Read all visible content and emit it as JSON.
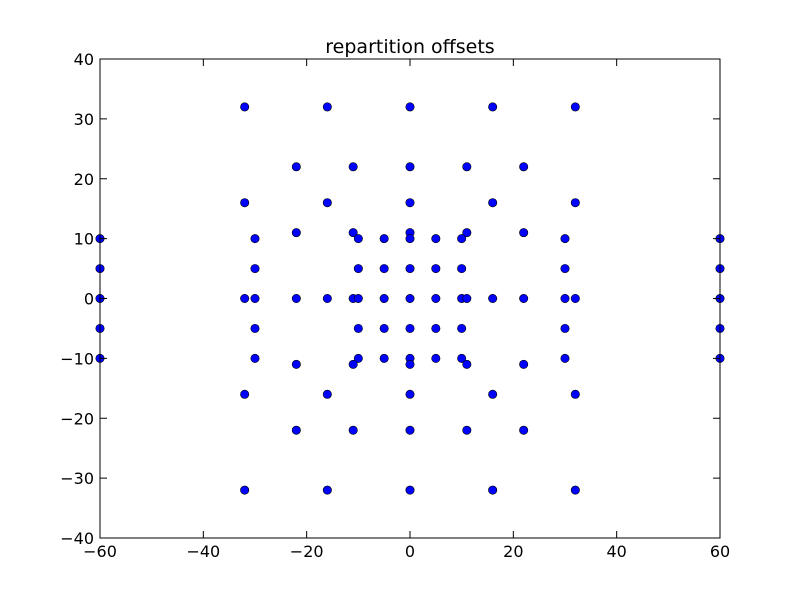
{
  "chart_data": {
    "type": "scatter",
    "title": "repartition offsets",
    "xlabel": "",
    "ylabel": "",
    "xlim": [
      -60,
      60
    ],
    "ylim": [
      -40,
      40
    ],
    "xticks": [
      -60,
      -40,
      -20,
      0,
      20,
      40,
      60
    ],
    "yticks": [
      -40,
      -30,
      -20,
      -10,
      0,
      10,
      20,
      30,
      40
    ],
    "xtick_labels": [
      "−60",
      "−40",
      "−20",
      "0",
      "20",
      "40",
      "60"
    ],
    "ytick_labels": [
      "−40",
      "−30",
      "−20",
      "−10",
      "0",
      "10",
      "20",
      "30",
      "40"
    ],
    "grid": false,
    "marker_color": "#0000ff",
    "points": [
      [
        -32,
        32
      ],
      [
        -16,
        32
      ],
      [
        0,
        32
      ],
      [
        16,
        32
      ],
      [
        32,
        32
      ],
      [
        -22,
        22
      ],
      [
        -11,
        22
      ],
      [
        0,
        22
      ],
      [
        11,
        22
      ],
      [
        22,
        22
      ],
      [
        -32,
        16
      ],
      [
        -16,
        16
      ],
      [
        0,
        16
      ],
      [
        16,
        16
      ],
      [
        32,
        16
      ],
      [
        -22,
        11
      ],
      [
        -11,
        11
      ],
      [
        0,
        11
      ],
      [
        11,
        11
      ],
      [
        22,
        11
      ],
      [
        -60,
        10
      ],
      [
        -30,
        10
      ],
      [
        -10,
        10
      ],
      [
        -5,
        10
      ],
      [
        0,
        10
      ],
      [
        5,
        10
      ],
      [
        10,
        10
      ],
      [
        30,
        10
      ],
      [
        60,
        10
      ],
      [
        -60,
        5
      ],
      [
        -30,
        5
      ],
      [
        -10,
        5
      ],
      [
        -5,
        5
      ],
      [
        0,
        5
      ],
      [
        5,
        5
      ],
      [
        10,
        5
      ],
      [
        30,
        5
      ],
      [
        60,
        5
      ],
      [
        -60,
        0
      ],
      [
        -32,
        0
      ],
      [
        -30,
        0
      ],
      [
        -22,
        0
      ],
      [
        -16,
        0
      ],
      [
        -11,
        0
      ],
      [
        -10,
        0
      ],
      [
        -5,
        0
      ],
      [
        0,
        0
      ],
      [
        5,
        0
      ],
      [
        10,
        0
      ],
      [
        11,
        0
      ],
      [
        16,
        0
      ],
      [
        22,
        0
      ],
      [
        30,
        0
      ],
      [
        32,
        0
      ],
      [
        60,
        0
      ],
      [
        -60,
        -5
      ],
      [
        -30,
        -5
      ],
      [
        -10,
        -5
      ],
      [
        -5,
        -5
      ],
      [
        0,
        -5
      ],
      [
        5,
        -5
      ],
      [
        10,
        -5
      ],
      [
        30,
        -5
      ],
      [
        60,
        -5
      ],
      [
        -60,
        -10
      ],
      [
        -30,
        -10
      ],
      [
        -10,
        -10
      ],
      [
        -5,
        -10
      ],
      [
        0,
        -10
      ],
      [
        5,
        -10
      ],
      [
        10,
        -10
      ],
      [
        30,
        -10
      ],
      [
        60,
        -10
      ],
      [
        -22,
        -11
      ],
      [
        -11,
        -11
      ],
      [
        0,
        -11
      ],
      [
        11,
        -11
      ],
      [
        22,
        -11
      ],
      [
        -32,
        -16
      ],
      [
        -16,
        -16
      ],
      [
        0,
        -16
      ],
      [
        16,
        -16
      ],
      [
        32,
        -16
      ],
      [
        -22,
        -22
      ],
      [
        -11,
        -22
      ],
      [
        0,
        -22
      ],
      [
        11,
        -22
      ],
      [
        22,
        -22
      ],
      [
        -32,
        -32
      ],
      [
        -16,
        -32
      ],
      [
        0,
        -32
      ],
      [
        16,
        -32
      ],
      [
        32,
        -32
      ]
    ]
  }
}
